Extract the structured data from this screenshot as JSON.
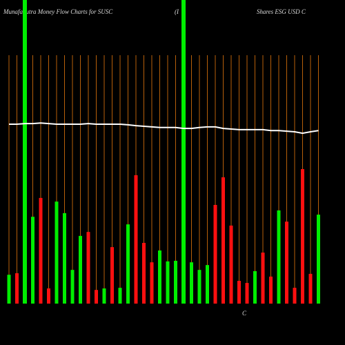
{
  "chart_data": {
    "type": "bar",
    "title": "MunafaSutra  Money Flow  Charts for SUSC",
    "title_middle": "(I",
    "title_right": "Shares ESG USD C",
    "annotation": "C",
    "ylim": [
      0,
      100
    ],
    "colors": {
      "up": "#00ee00",
      "down": "#ff1010",
      "line": "#ffffff",
      "grid": "#b8600a"
    },
    "bar_colors": [
      "up",
      "down",
      "up",
      "up",
      "down",
      "down",
      "up",
      "up",
      "up",
      "up",
      "down",
      "down",
      "up",
      "down",
      "up",
      "up",
      "down",
      "down",
      "down",
      "up",
      "up",
      "up",
      "up",
      "up",
      "up",
      "up",
      "down",
      "down",
      "down",
      "down",
      "down",
      "up",
      "down",
      "down",
      "up",
      "down",
      "down",
      "down",
      "down",
      "up"
    ],
    "values": [
      9.5,
      10,
      100,
      28.6,
      34.8,
      5,
      33.6,
      29.8,
      11.1,
      22.3,
      23.6,
      4.5,
      5,
      18.6,
      5.2,
      26.1,
      42.3,
      20,
      13.6,
      17.5,
      13.9,
      14.1,
      100,
      13.6,
      11.1,
      12.7,
      32.5,
      41.6,
      25.7,
      7.5,
      6.8,
      10.7,
      16.8,
      8.9,
      30.7,
      27,
      5.2,
      44.3,
      9.8,
      29.3
    ],
    "line_values": [
      59.1,
      59.1,
      59.3,
      59.3,
      59.5,
      59.3,
      59.1,
      59.1,
      59.1,
      59.1,
      59.3,
      59.1,
      59.1,
      59.1,
      59.1,
      58.9,
      58.6,
      58.4,
      58.2,
      58,
      58,
      58,
      57.7,
      57.7,
      58,
      58.2,
      58.2,
      57.7,
      57.5,
      57.3,
      57.3,
      57.3,
      57.3,
      57,
      57,
      56.8,
      56.6,
      56.1,
      56.6,
      57
    ]
  }
}
